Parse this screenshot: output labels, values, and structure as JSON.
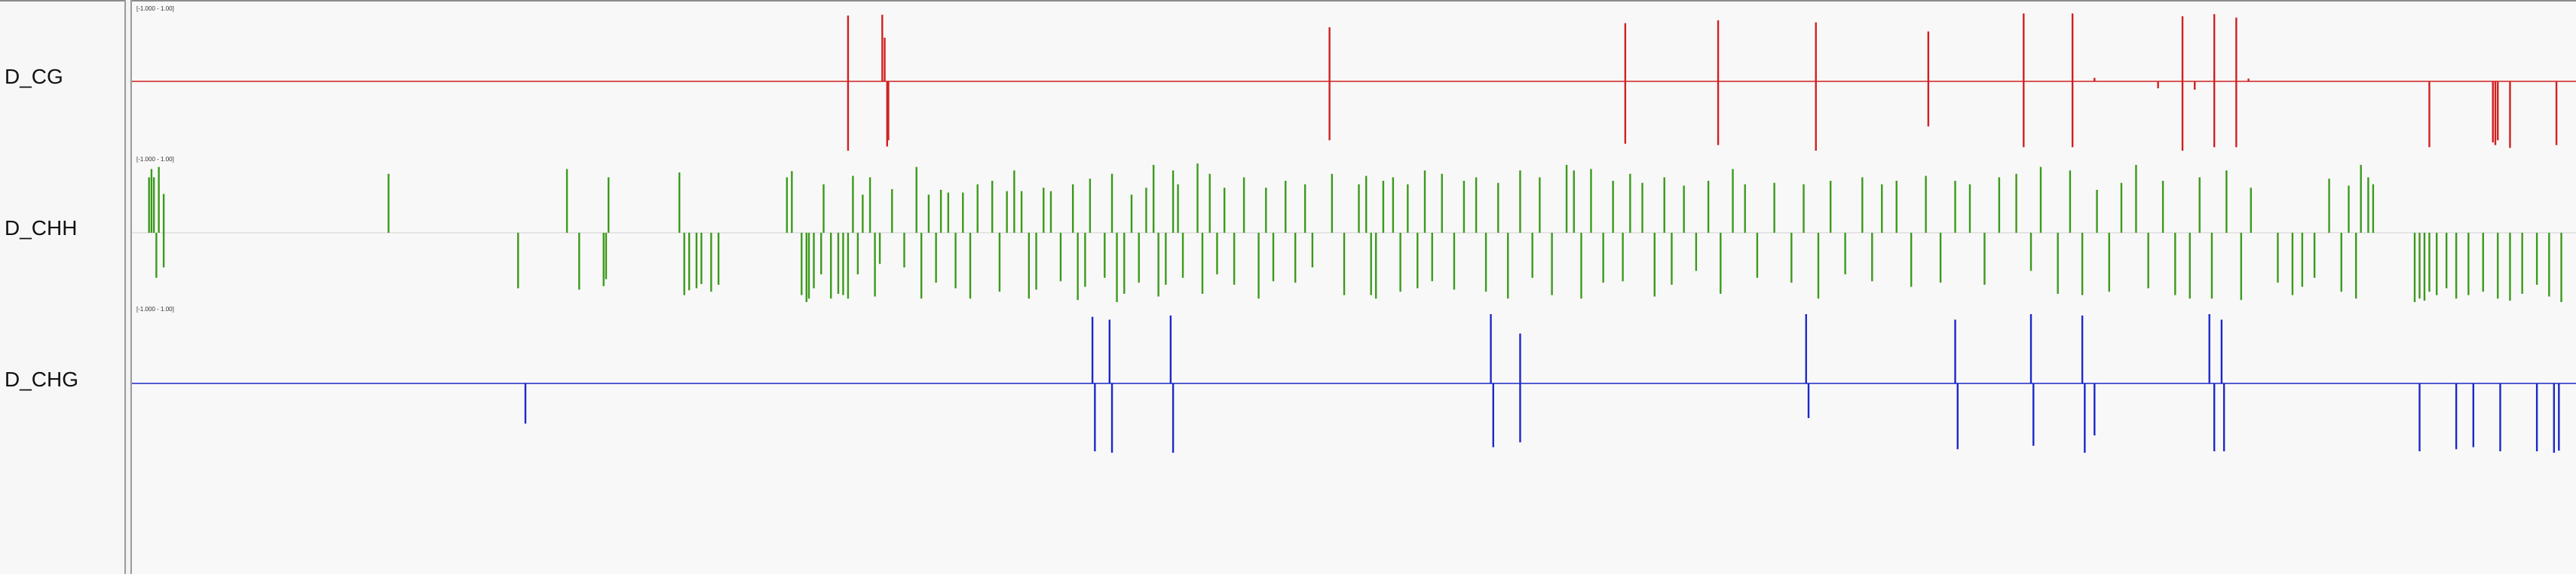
{
  "tracks": [
    {
      "name": "D_CG",
      "range": "[-1.000 - 1.00]",
      "color": "#d02020"
    },
    {
      "name": "D_CHH",
      "range": "[-1.000 - 1.00]",
      "color": "#3c9a1c"
    },
    {
      "name": "D_CHG",
      "range": "[-1.000 - 1.00]",
      "color": "#1c28c8"
    }
  ],
  "chart_data": {
    "type": "bar",
    "ylim": [
      -1,
      1
    ],
    "xlim": [
      0,
      100
    ],
    "series": [
      {
        "name": "D_CG",
        "points": [
          [
            29.3,
            0.95
          ],
          [
            29.3,
            -1.0
          ],
          [
            30.7,
            0.96
          ],
          [
            30.8,
            0.63
          ],
          [
            30.9,
            -0.94
          ],
          [
            30.95,
            -0.85
          ],
          [
            49.0,
            0.78
          ],
          [
            49.0,
            -0.85
          ],
          [
            61.1,
            0.84
          ],
          [
            61.1,
            -0.9
          ],
          [
            64.9,
            0.88
          ],
          [
            64.9,
            -0.92
          ],
          [
            68.9,
            0.85
          ],
          [
            68.9,
            -1.0
          ],
          [
            73.5,
            0.72
          ],
          [
            73.5,
            -0.65
          ],
          [
            77.4,
            0.98
          ],
          [
            77.4,
            -0.95
          ],
          [
            79.4,
            0.98
          ],
          [
            79.4,
            -0.95
          ],
          [
            80.3,
            0.05
          ],
          [
            82.9,
            -0.1
          ],
          [
            83.9,
            0.94
          ],
          [
            83.9,
            -1.0
          ],
          [
            84.4,
            -0.12
          ],
          [
            85.2,
            0.97
          ],
          [
            85.2,
            -0.95
          ],
          [
            86.1,
            0.92
          ],
          [
            86.1,
            -0.95
          ],
          [
            86.6,
            0.04
          ],
          [
            94.0,
            -0.95
          ],
          [
            96.6,
            -0.88
          ],
          [
            96.7,
            -0.92
          ],
          [
            96.8,
            -0.85
          ],
          [
            97.3,
            -0.96
          ],
          [
            99.2,
            -0.92
          ]
        ]
      },
      {
        "name": "D_CHH",
        "points": [
          [
            0.7,
            0.8
          ],
          [
            0.8,
            0.92
          ],
          [
            0.9,
            0.8
          ],
          [
            1.0,
            -0.65
          ],
          [
            1.1,
            0.95
          ],
          [
            1.3,
            0.56
          ],
          [
            1.3,
            -0.5
          ],
          [
            10.5,
            0.85
          ],
          [
            15.8,
            -0.8
          ],
          [
            17.8,
            0.92
          ],
          [
            18.3,
            -0.82
          ],
          [
            19.3,
            -0.77
          ],
          [
            19.4,
            -0.67
          ],
          [
            19.5,
            0.8
          ],
          [
            22.4,
            0.87
          ],
          [
            22.6,
            -0.9
          ],
          [
            22.8,
            -0.83
          ],
          [
            23.1,
            -0.8
          ],
          [
            23.3,
            -0.74
          ],
          [
            23.7,
            -0.85
          ],
          [
            24.0,
            -0.75
          ],
          [
            26.8,
            0.8
          ],
          [
            27.0,
            0.89
          ],
          [
            27.4,
            -0.9
          ],
          [
            27.6,
            -1.0
          ],
          [
            27.7,
            -0.95
          ],
          [
            27.9,
            -0.8
          ],
          [
            28.2,
            -0.6
          ],
          [
            28.3,
            0.7
          ],
          [
            28.6,
            -0.95
          ],
          [
            28.9,
            -0.88
          ],
          [
            29.1,
            -0.9
          ],
          [
            29.3,
            -0.95
          ],
          [
            29.5,
            0.82
          ],
          [
            29.7,
            -0.6
          ],
          [
            29.9,
            0.55
          ],
          [
            30.2,
            0.8
          ],
          [
            30.4,
            -0.92
          ],
          [
            30.6,
            -0.45
          ],
          [
            31.1,
            0.63
          ],
          [
            31.6,
            -0.5
          ],
          [
            32.1,
            0.95
          ],
          [
            32.3,
            -0.95
          ],
          [
            32.6,
            0.55
          ],
          [
            32.9,
            -0.72
          ],
          [
            33.1,
            0.62
          ],
          [
            33.4,
            0.58
          ],
          [
            33.7,
            -0.8
          ],
          [
            34.0,
            0.58
          ],
          [
            34.3,
            -0.95
          ],
          [
            34.6,
            0.7
          ],
          [
            35.2,
            0.75
          ],
          [
            35.5,
            -0.85
          ],
          [
            35.8,
            0.6
          ],
          [
            36.1,
            0.9
          ],
          [
            36.4,
            0.6
          ],
          [
            36.7,
            -0.95
          ],
          [
            37.0,
            -0.82
          ],
          [
            37.3,
            0.65
          ],
          [
            37.6,
            0.6
          ],
          [
            38.0,
            -0.7
          ],
          [
            38.5,
            0.7
          ],
          [
            38.7,
            -0.97
          ],
          [
            39.0,
            -0.78
          ],
          [
            39.2,
            0.78
          ],
          [
            39.8,
            -0.65
          ],
          [
            40.1,
            0.85
          ],
          [
            40.3,
            -1.0
          ],
          [
            40.6,
            -0.88
          ],
          [
            40.9,
            0.55
          ],
          [
            41.2,
            -0.72
          ],
          [
            41.5,
            0.65
          ],
          [
            41.8,
            0.98
          ],
          [
            42.0,
            -0.92
          ],
          [
            42.3,
            -0.75
          ],
          [
            42.6,
            0.9
          ],
          [
            42.8,
            0.7
          ],
          [
            43.0,
            -0.65
          ],
          [
            43.6,
            1.0
          ],
          [
            43.8,
            -0.88
          ],
          [
            44.1,
            0.85
          ],
          [
            44.4,
            -0.6
          ],
          [
            44.7,
            0.65
          ],
          [
            45.1,
            -0.75
          ],
          [
            45.5,
            0.8
          ],
          [
            46.1,
            -0.95
          ],
          [
            46.4,
            0.65
          ],
          [
            46.7,
            -0.7
          ],
          [
            47.2,
            0.75
          ],
          [
            47.6,
            -0.72
          ],
          [
            48.0,
            0.7
          ],
          [
            48.3,
            -0.5
          ],
          [
            49.1,
            0.85
          ],
          [
            49.6,
            -0.9
          ],
          [
            50.2,
            0.7
          ],
          [
            50.5,
            0.82
          ],
          [
            50.7,
            -0.9
          ],
          [
            50.9,
            -0.95
          ],
          [
            51.2,
            0.75
          ],
          [
            51.6,
            0.8
          ],
          [
            51.9,
            -0.85
          ],
          [
            52.2,
            0.7
          ],
          [
            52.6,
            -0.8
          ],
          [
            52.9,
            0.9
          ],
          [
            53.2,
            -0.7
          ],
          [
            53.6,
            0.85
          ],
          [
            54.1,
            -0.82
          ],
          [
            54.5,
            0.75
          ],
          [
            55.0,
            0.8
          ],
          [
            55.4,
            -0.85
          ],
          [
            55.9,
            0.72
          ],
          [
            56.3,
            -0.95
          ],
          [
            56.8,
            0.9
          ],
          [
            57.3,
            -0.65
          ],
          [
            57.6,
            0.8
          ],
          [
            58.1,
            -0.9
          ],
          [
            58.7,
            0.98
          ],
          [
            59.0,
            0.9
          ],
          [
            59.3,
            -0.95
          ],
          [
            59.7,
            0.92
          ],
          [
            60.2,
            -0.72
          ],
          [
            60.6,
            0.75
          ],
          [
            61.0,
            -0.7
          ],
          [
            61.3,
            0.85
          ],
          [
            61.8,
            0.72
          ],
          [
            62.3,
            -0.92
          ],
          [
            62.7,
            0.8
          ],
          [
            63.0,
            -0.75
          ],
          [
            63.5,
            0.68
          ],
          [
            64.0,
            -0.55
          ],
          [
            64.5,
            0.75
          ],
          [
            65.0,
            -0.88
          ],
          [
            65.5,
            0.92
          ],
          [
            66.0,
            0.7
          ],
          [
            66.5,
            -0.65
          ],
          [
            67.2,
            0.72
          ],
          [
            67.9,
            -0.72
          ],
          [
            68.4,
            0.7
          ],
          [
            69.0,
            -0.95
          ],
          [
            69.5,
            0.75
          ],
          [
            70.1,
            -0.6
          ],
          [
            70.8,
            0.8
          ],
          [
            71.2,
            -0.7
          ],
          [
            71.6,
            0.7
          ],
          [
            72.2,
            0.75
          ],
          [
            72.8,
            -0.78
          ],
          [
            73.4,
            0.82
          ],
          [
            74.0,
            -0.72
          ],
          [
            74.6,
            0.75
          ],
          [
            75.2,
            0.7
          ],
          [
            75.8,
            -0.75
          ],
          [
            76.4,
            0.8
          ],
          [
            77.1,
            0.85
          ],
          [
            77.7,
            -0.55
          ],
          [
            78.1,
            0.95
          ],
          [
            78.8,
            -0.88
          ],
          [
            79.3,
            0.9
          ],
          [
            79.8,
            -0.9
          ],
          [
            80.4,
            0.62
          ],
          [
            80.9,
            -0.85
          ],
          [
            81.4,
            0.72
          ],
          [
            82.0,
            0.98
          ],
          [
            82.5,
            -0.8
          ],
          [
            83.1,
            0.75
          ],
          [
            83.6,
            -0.9
          ],
          [
            84.2,
            -0.95
          ],
          [
            84.6,
            0.8
          ],
          [
            85.1,
            -0.95
          ],
          [
            85.7,
            0.9
          ],
          [
            86.3,
            -0.97
          ],
          [
            86.7,
            0.65
          ],
          [
            87.8,
            -0.72
          ],
          [
            88.4,
            -0.9
          ],
          [
            88.8,
            -0.78
          ],
          [
            89.3,
            -0.65
          ],
          [
            89.9,
            0.78
          ],
          [
            90.4,
            -0.85
          ],
          [
            90.7,
            0.68
          ],
          [
            91.0,
            -0.95
          ],
          [
            91.2,
            0.98
          ],
          [
            91.5,
            0.8
          ],
          [
            91.7,
            0.7
          ],
          [
            93.4,
            -1.0
          ],
          [
            93.6,
            -0.95
          ],
          [
            93.8,
            -0.98
          ],
          [
            94.0,
            -0.85
          ],
          [
            94.3,
            -0.9
          ],
          [
            94.7,
            -0.8
          ],
          [
            95.1,
            -0.95
          ],
          [
            95.6,
            -0.9
          ],
          [
            96.2,
            -0.85
          ],
          [
            96.8,
            -0.95
          ],
          [
            97.3,
            -0.98
          ],
          [
            97.8,
            -0.88
          ],
          [
            98.4,
            -0.75
          ],
          [
            98.9,
            -0.92
          ],
          [
            99.4,
            -1.0
          ]
        ]
      },
      {
        "name": "D_CHG",
        "points": [
          [
            16.1,
            -0.58
          ],
          [
            39.3,
            0.96
          ],
          [
            39.4,
            -0.98
          ],
          [
            40.0,
            0.92
          ],
          [
            40.1,
            -1.0
          ],
          [
            42.5,
            0.98
          ],
          [
            42.6,
            -1.0
          ],
          [
            55.6,
            1.0
          ],
          [
            55.7,
            -0.92
          ],
          [
            56.8,
            0.72
          ],
          [
            56.8,
            -0.85
          ],
          [
            68.5,
            1.0
          ],
          [
            68.6,
            -0.5
          ],
          [
            74.6,
            0.92
          ],
          [
            74.7,
            -0.95
          ],
          [
            77.7,
            1.0
          ],
          [
            77.8,
            -0.9
          ],
          [
            79.8,
            0.98
          ],
          [
            79.9,
            -1.0
          ],
          [
            80.3,
            -0.75
          ],
          [
            85.0,
            1.0
          ],
          [
            85.2,
            -0.98
          ],
          [
            85.5,
            0.92
          ],
          [
            85.6,
            -0.98
          ],
          [
            93.6,
            -0.98
          ],
          [
            95.1,
            -0.95
          ],
          [
            95.8,
            -0.92
          ],
          [
            96.9,
            -0.98
          ],
          [
            98.4,
            -0.98
          ],
          [
            99.1,
            -1.0
          ],
          [
            99.3,
            -0.97
          ]
        ]
      }
    ]
  }
}
